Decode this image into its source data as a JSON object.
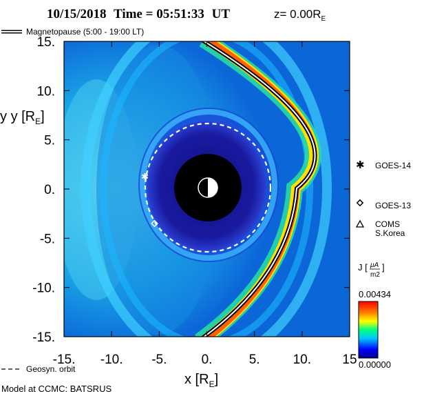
{
  "title": {
    "date": "10/15/2018",
    "time_label": "Time = ",
    "time": "05:51:33",
    "tz": "UT",
    "z_label": "z= 0.00R",
    "z_unit_sub": "E"
  },
  "legend": {
    "magnetopause": "Magnetopause (5:00 - 19:00 LT)",
    "geosyn": "Geosyn. orbit"
  },
  "satellites": [
    {
      "name": "GOES-14",
      "symbol": "asterisk",
      "x": -6.5,
      "y": 1.3
    },
    {
      "name": "GOES-13",
      "symbol": "diamond",
      "x": -5.5,
      "y": -3.5
    },
    {
      "name": "COMS",
      "name2": "S.Korea",
      "symbol": "triangle"
    }
  ],
  "axes": {
    "x_label": "x [R",
    "y_label": "y [R",
    "unit_sub": "E",
    "x_ticks": [
      "-15.",
      "-10.",
      "-5.",
      "0.",
      "5.",
      "10.",
      "15"
    ],
    "y_ticks": [
      "15.",
      "10.",
      "5.",
      "0.",
      "-5.",
      "-10.",
      "-15."
    ]
  },
  "colorbar": {
    "label": "J [",
    "unit_num": "μA",
    "unit_den": "m2",
    "max": "0.00434",
    "min": "0.00000"
  },
  "footer": "Model at CCMC: BATSRUS",
  "chart_data": {
    "type": "heatmap",
    "quantity": "J",
    "xlim": [
      -15,
      15
    ],
    "ylim": [
      -15,
      15
    ],
    "clim": [
      0,
      0.00434
    ],
    "earth_radius_re": 1,
    "inner_boundary_re": 3.5,
    "geosynchronous_orbit_re": 6.6,
    "magnetopause_standoff_re": 9.6
  }
}
